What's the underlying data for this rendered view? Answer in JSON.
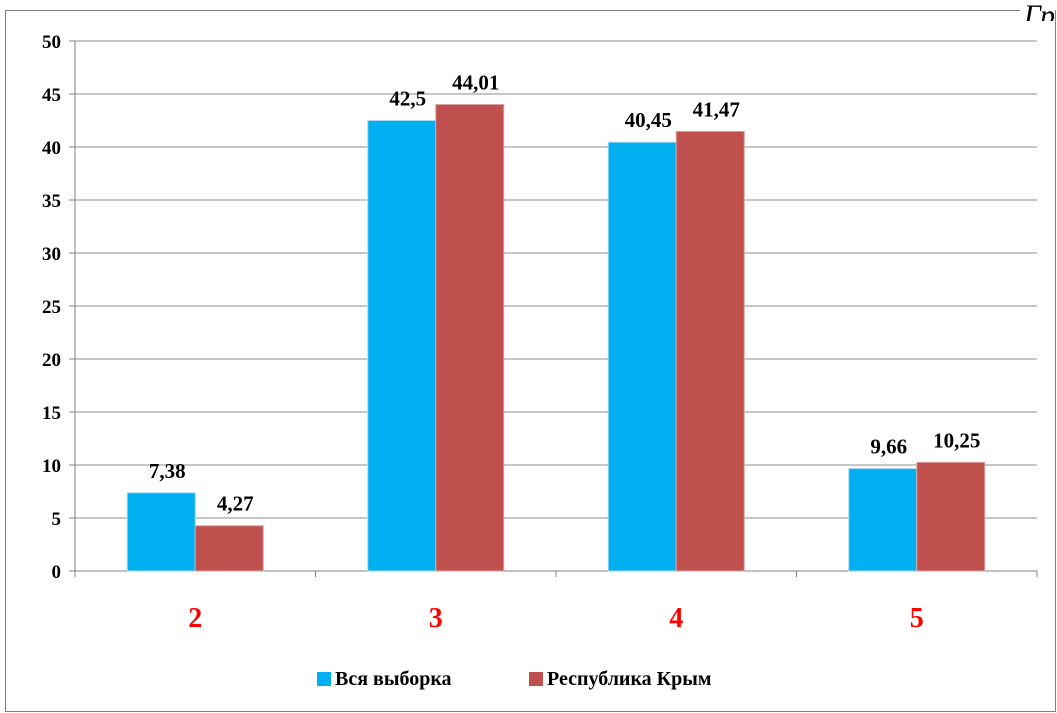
{
  "corner_text": "Гр",
  "colors": {
    "series1": "#00b0f0",
    "series2": "#c0504d",
    "category_label": "#ff0000",
    "gridline": "#8c8c8c",
    "axis": "#808080"
  },
  "chart_data": {
    "type": "bar",
    "title": "",
    "xlabel": "",
    "ylabel": "",
    "categories": [
      "2",
      "3",
      "4",
      "5"
    ],
    "series": [
      {
        "name": "Вся выборка",
        "values": [
          7.38,
          42.5,
          40.45,
          9.66
        ],
        "labels": [
          "7,38",
          "42,5",
          "40,45",
          "9,66"
        ]
      },
      {
        "name": "Республика Крым",
        "values": [
          4.27,
          44.01,
          41.47,
          10.25
        ],
        "labels": [
          "4,27",
          "44,01",
          "41,47",
          "10,25"
        ]
      }
    ],
    "ylim": [
      0,
      50
    ],
    "yticks": [
      0,
      5,
      10,
      15,
      20,
      25,
      30,
      35,
      40,
      45,
      50
    ],
    "grid": true,
    "legend_position": "bottom"
  }
}
